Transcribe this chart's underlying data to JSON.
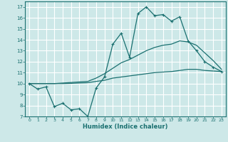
{
  "xlabel": "Humidex (Indice chaleur)",
  "ylabel": "",
  "bg_color": "#cde8e8",
  "line_color": "#1a7070",
  "x": [
    0,
    1,
    2,
    3,
    4,
    5,
    6,
    7,
    8,
    9,
    10,
    11,
    12,
    13,
    14,
    15,
    16,
    17,
    18,
    19,
    20,
    21,
    22,
    23
  ],
  "y_main": [
    10.0,
    9.5,
    9.7,
    7.9,
    8.2,
    7.6,
    7.7,
    7.0,
    9.6,
    10.6,
    13.6,
    14.6,
    12.4,
    16.4,
    17.0,
    16.2,
    16.3,
    15.7,
    16.1,
    13.9,
    13.0,
    12.0,
    11.5,
    11.1
  ],
  "y_upper": [
    10.0,
    10.0,
    10.0,
    10.0,
    10.05,
    10.1,
    10.15,
    10.2,
    10.5,
    10.9,
    11.4,
    11.9,
    12.2,
    12.6,
    13.0,
    13.3,
    13.5,
    13.6,
    13.9,
    13.8,
    13.5,
    12.8,
    12.1,
    11.3
  ],
  "y_lower": [
    10.0,
    10.0,
    10.0,
    10.0,
    10.0,
    10.02,
    10.05,
    10.08,
    10.2,
    10.3,
    10.5,
    10.6,
    10.7,
    10.8,
    10.9,
    11.0,
    11.05,
    11.1,
    11.2,
    11.3,
    11.3,
    11.2,
    11.15,
    11.1
  ],
  "xlim": [
    -0.5,
    23.5
  ],
  "ylim": [
    7,
    17.5
  ],
  "yticks": [
    7,
    8,
    9,
    10,
    11,
    12,
    13,
    14,
    15,
    16,
    17
  ],
  "xticks": [
    0,
    1,
    2,
    3,
    4,
    5,
    6,
    7,
    8,
    9,
    10,
    11,
    12,
    13,
    14,
    15,
    16,
    17,
    18,
    19,
    20,
    21,
    22,
    23
  ]
}
